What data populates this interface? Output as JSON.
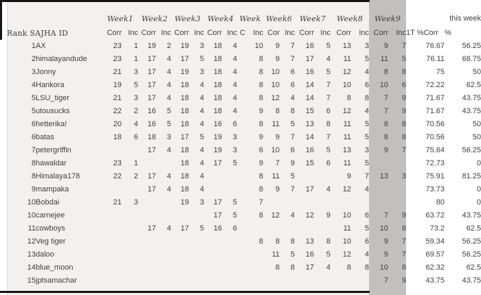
{
  "header": {
    "rank_id_label": "Rank SAJHA ID",
    "this_week_label": "this week",
    "weeks": [
      "Week1",
      "Week2",
      "Week3",
      "Week4",
      "Week",
      "Week6",
      "Week7",
      "Week8",
      "Week9"
    ],
    "sub_labels": [
      "Corr",
      "Inc",
      "Corr",
      "Inc",
      "Corr",
      "Inc",
      "Corr",
      "Inc",
      "C",
      "Inc",
      "Cor",
      "Inc",
      "Corr",
      "Inc",
      "Corr",
      "Inc",
      "Corr",
      "Inc"
    ],
    "total_pct_label": "1T %Corr",
    "week_pct_label": "%"
  },
  "colors": {
    "table_background": "#f2f1ee",
    "week9_highlight": "#c1c0be",
    "text": "#3e3e3e",
    "border": "#141414"
  },
  "table": {
    "column_names": [
      "rank",
      "sajha-id",
      "week1-corr",
      "week1-inc",
      "week2-corr",
      "week2-inc",
      "week3-corr",
      "week3-inc",
      "week4-corr",
      "week4-inc",
      "week5-corr",
      "week5-inc",
      "week6-corr",
      "week6-inc",
      "week7-corr",
      "week7-inc",
      "week8-corr",
      "week8-inc",
      "week9-corr",
      "week9-inc",
      "total-pct-corr",
      "this-week-pct"
    ],
    "rows": [
      [
        "1",
        "AX",
        "23",
        "1",
        "19",
        "2",
        "19",
        "3",
        "18",
        "4",
        "",
        "10",
        "9",
        "7",
        "16",
        "5",
        "13",
        "3",
        "9",
        "7",
        "76.67",
        "56.25"
      ],
      [
        "2",
        "himalayandude",
        "23",
        "1",
        "17",
        "4",
        "17",
        "5",
        "18",
        "4",
        "",
        "8",
        "9",
        "7",
        "17",
        "4",
        "11",
        "5",
        "11",
        "5",
        "76.11",
        "68.75"
      ],
      [
        "3",
        "Jonny",
        "21",
        "3",
        "17",
        "4",
        "19",
        "3",
        "18",
        "4",
        "",
        "8",
        "10",
        "6",
        "16",
        "5",
        "12",
        "4",
        "8",
        "8",
        "75",
        "50"
      ],
      [
        "4",
        "Hankora",
        "19",
        "5",
        "17",
        "4",
        "18",
        "4",
        "18",
        "4",
        "",
        "8",
        "10",
        "6",
        "14",
        "7",
        "10",
        "6",
        "10",
        "6",
        "72.22",
        "62.5"
      ],
      [
        "5",
        "LSU_tiger",
        "21",
        "3",
        "17",
        "4",
        "18",
        "4",
        "18",
        "4",
        "",
        "8",
        "12",
        "4",
        "14",
        "7",
        "8",
        "8",
        "7",
        "9",
        "71.67",
        "43.75"
      ],
      [
        "5",
        "utousucks",
        "22",
        "2",
        "16",
        "5",
        "18",
        "4",
        "18",
        "4",
        "",
        "9",
        "8",
        "8",
        "15",
        "6",
        "12",
        "4",
        "7",
        "9",
        "71.67",
        "43.75"
      ],
      [
        "6",
        "hetterika!",
        "20",
        "4",
        "16",
        "5",
        "18",
        "4",
        "16",
        "6",
        "",
        "8",
        "11",
        "5",
        "13",
        "8",
        "11",
        "5",
        "8",
        "8",
        "70.56",
        "50"
      ],
      [
        "6",
        "batas",
        "18",
        "6",
        "18",
        "3",
        "17",
        "5",
        "19",
        "3",
        "",
        "9",
        "9",
        "7",
        "14",
        "7",
        "11",
        "5",
        "8",
        "8",
        "70.56",
        "50"
      ],
      [
        "7",
        "petergriffin",
        "",
        "",
        "17",
        "4",
        "18",
        "4",
        "19",
        "3",
        "",
        "6",
        "10",
        "6",
        "16",
        "5",
        "13",
        "3",
        "9",
        "7",
        "75.64",
        "56.25"
      ],
      [
        "8",
        "hawaldar",
        "23",
        "1",
        "",
        "",
        "18",
        "4",
        "17",
        "5",
        "",
        "9",
        "7",
        "9",
        "15",
        "6",
        "11",
        "5",
        "",
        "",
        "72.73",
        "0"
      ],
      [
        "8",
        "Himalaya178",
        "22",
        "2",
        "17",
        "4",
        "18",
        "4",
        "",
        "",
        "",
        "8",
        "11",
        "5",
        "",
        "",
        "9",
        "7",
        "13",
        "3",
        "75.91",
        "81.25"
      ],
      [
        "9",
        "mampaka",
        "",
        "",
        "17",
        "4",
        "18",
        "4",
        "",
        "",
        "",
        "8",
        "9",
        "7",
        "17",
        "4",
        "12",
        "4",
        "",
        "",
        "73.73",
        "0"
      ],
      [
        "10",
        "Bobdai",
        "21",
        "3",
        "",
        "",
        "19",
        "3",
        "17",
        "5",
        "",
        "7",
        "",
        "",
        "",
        "",
        "",
        "",
        "",
        "",
        "80",
        "0"
      ],
      [
        "10",
        "carnejee",
        "",
        "",
        "",
        "",
        "",
        "",
        "17",
        "5",
        "",
        "8",
        "12",
        "4",
        "12",
        "9",
        "10",
        "6",
        "7",
        "9",
        "63.72",
        "43.75"
      ],
      [
        "11",
        "cowboys",
        "",
        "",
        "17",
        "4",
        "17",
        "5",
        "16",
        "6",
        "",
        "",
        "",
        "",
        "",
        "",
        "11",
        "5",
        "10",
        "6",
        "73.2",
        "62.5"
      ],
      [
        "12",
        "Veg tiger",
        "",
        "",
        "",
        "",
        "",
        "",
        "",
        "",
        "",
        "8",
        "8",
        "8",
        "13",
        "8",
        "10",
        "6",
        "9",
        "7",
        "59.34",
        "56.25"
      ],
      [
        "13",
        "daloo",
        "",
        "",
        "",
        "",
        "",
        "",
        "",
        "",
        "",
        "",
        "11",
        "5",
        "16",
        "5",
        "12",
        "4",
        "9",
        "7",
        "69.57",
        "56.25"
      ],
      [
        "14",
        "blue_moon",
        "",
        "",
        "",
        "",
        "",
        "",
        "",
        "",
        "",
        "",
        "8",
        "8",
        "17",
        "4",
        "8",
        "8",
        "10",
        "6",
        "62.32",
        "62.5"
      ],
      [
        "15",
        "jptsamachar",
        "",
        "",
        "",
        "",
        "",
        "",
        "",
        "",
        "",
        "",
        "",
        "",
        "",
        "",
        "",
        "",
        "7",
        "9",
        "43.75",
        "43.75"
      ]
    ]
  }
}
